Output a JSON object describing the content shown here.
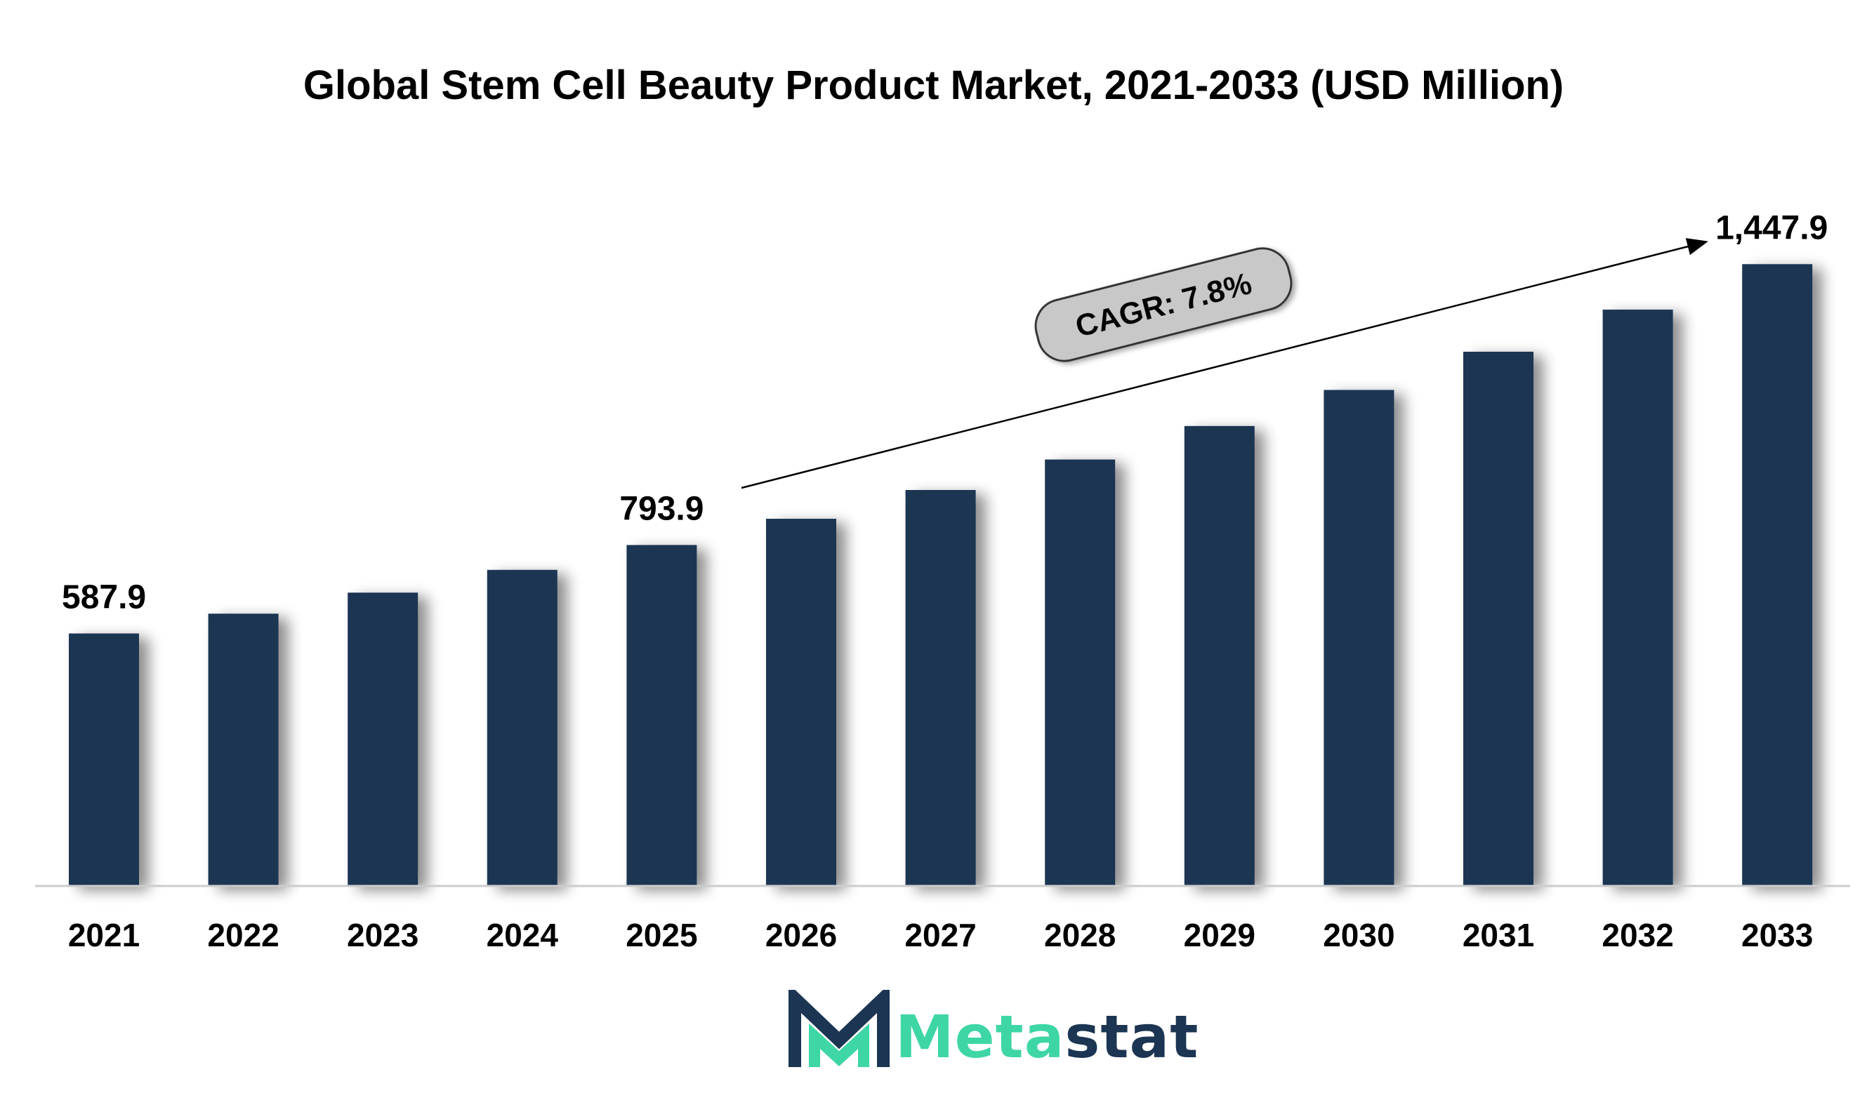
{
  "chart_data": {
    "type": "bar",
    "title": "Global Stem Cell Beauty Product Market, 2021-2033 (USD Million)",
    "xlabel": "",
    "ylabel": "",
    "categories": [
      "2021",
      "2022",
      "2023",
      "2024",
      "2025",
      "2026",
      "2027",
      "2028",
      "2029",
      "2030",
      "2031",
      "2032",
      "2033"
    ],
    "values": [
      587.9,
      634.0,
      683.0,
      736.0,
      793.9,
      855.0,
      922.0,
      993.0,
      1071.0,
      1155.0,
      1244.0,
      1342.0,
      1447.9
    ],
    "data_labels": [
      {
        "index": 0,
        "text": "587.9"
      },
      {
        "index": 4,
        "text": "793.9"
      },
      {
        "index": 12,
        "text": "1,447.9"
      }
    ],
    "annotation": {
      "text": "CAGR: 7.8%"
    },
    "ylim": [
      0,
      1450
    ],
    "grid": false,
    "legend": "none",
    "colors": {
      "bar": "#1b3552",
      "axis": "#cccccc",
      "badge_fill": "#c8c8c8",
      "badge_stroke": "#333333"
    }
  },
  "logo": {
    "text_primary": "Meta",
    "text_secondary": "stat",
    "colors": {
      "primary": "#3ed6a5",
      "secondary": "#1b3552"
    }
  }
}
